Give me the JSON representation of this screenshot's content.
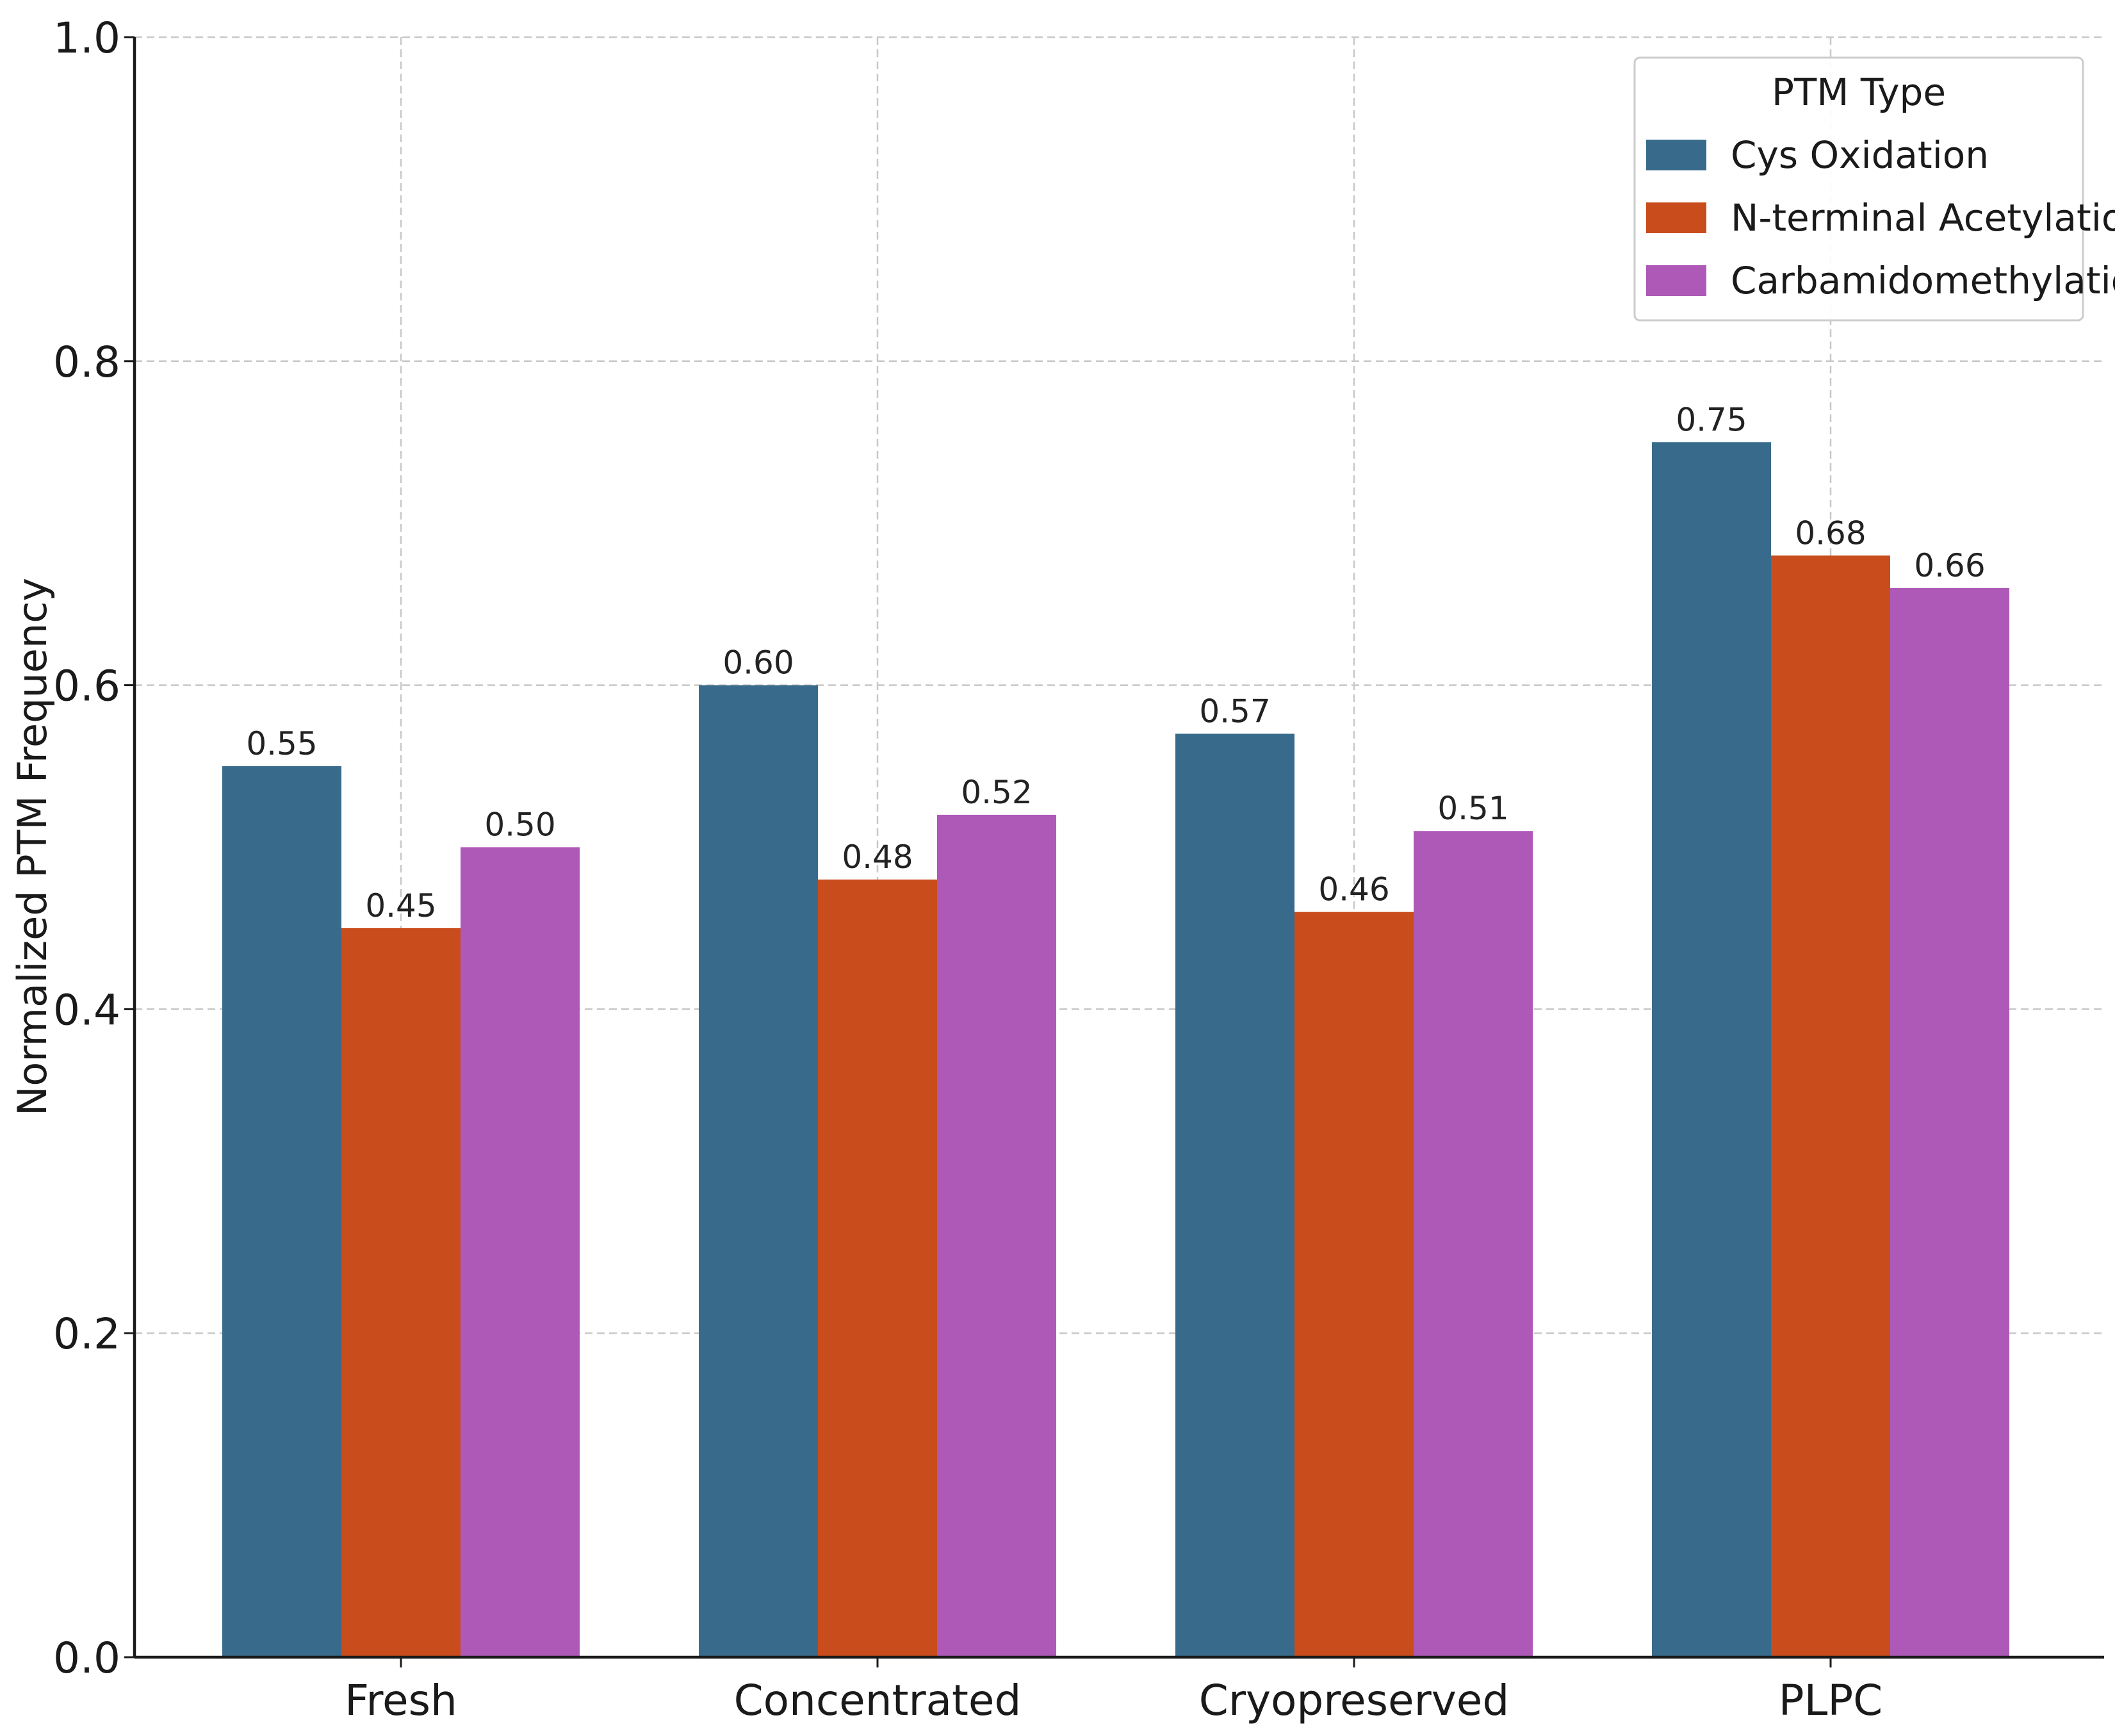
{
  "chart_data": {
    "type": "bar",
    "title": "",
    "xlabel": "",
    "ylabel": "Normalized PTM Frequency",
    "categories": [
      "Fresh",
      "Concentrated",
      "Cryopreserved",
      "PLPC"
    ],
    "series": [
      {
        "name": "Cys Oxidation",
        "color": "#386b8b",
        "values": [
          0.55,
          0.6,
          0.57,
          0.75
        ],
        "labels": [
          "0.55",
          "0.60",
          "0.57",
          "0.75"
        ]
      },
      {
        "name": "N-terminal Acetylation",
        "color": "#c94c1c",
        "values": [
          0.45,
          0.48,
          0.46,
          0.68
        ],
        "labels": [
          "0.45",
          "0.48",
          "0.46",
          "0.68"
        ]
      },
      {
        "name": "Carbamidomethylation",
        "color": "#ae59b8",
        "values": [
          0.5,
          0.52,
          0.51,
          0.66
        ],
        "labels": [
          "0.50",
          "0.52",
          "0.51",
          "0.66"
        ]
      }
    ],
    "ylim": [
      0.0,
      1.0
    ],
    "yticks": [
      0.0,
      0.2,
      0.4,
      0.6,
      0.8,
      1.0
    ],
    "ytick_labels": [
      "0.0",
      "0.2",
      "0.4",
      "0.6",
      "0.8",
      "1.0"
    ],
    "grid": true,
    "legend": {
      "title": "PTM Type",
      "position": "top-right"
    }
  }
}
